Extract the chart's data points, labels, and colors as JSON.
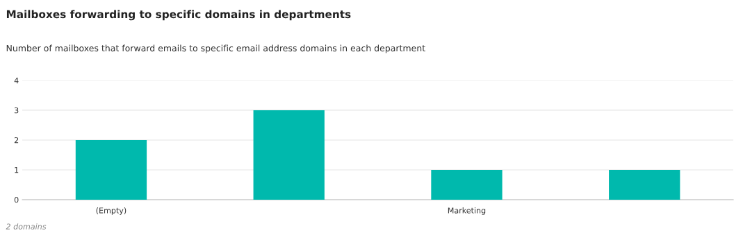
{
  "chart_data": {
    "type": "bar",
    "title": "Mailboxes forwarding to specific domains in departments",
    "subtitle": "Number of mailboxes that forward emails to specific email address domains in each department",
    "categories": [
      "(Empty)",
      null,
      "Marketing",
      null
    ],
    "values": [
      2,
      3,
      1,
      1
    ],
    "color": "#00b9ad",
    "ylim": [
      0,
      4
    ],
    "yticks": [
      0,
      1,
      2,
      3,
      4
    ],
    "grid": "y",
    "legend": false,
    "annotations": [
      "2 domains"
    ]
  }
}
